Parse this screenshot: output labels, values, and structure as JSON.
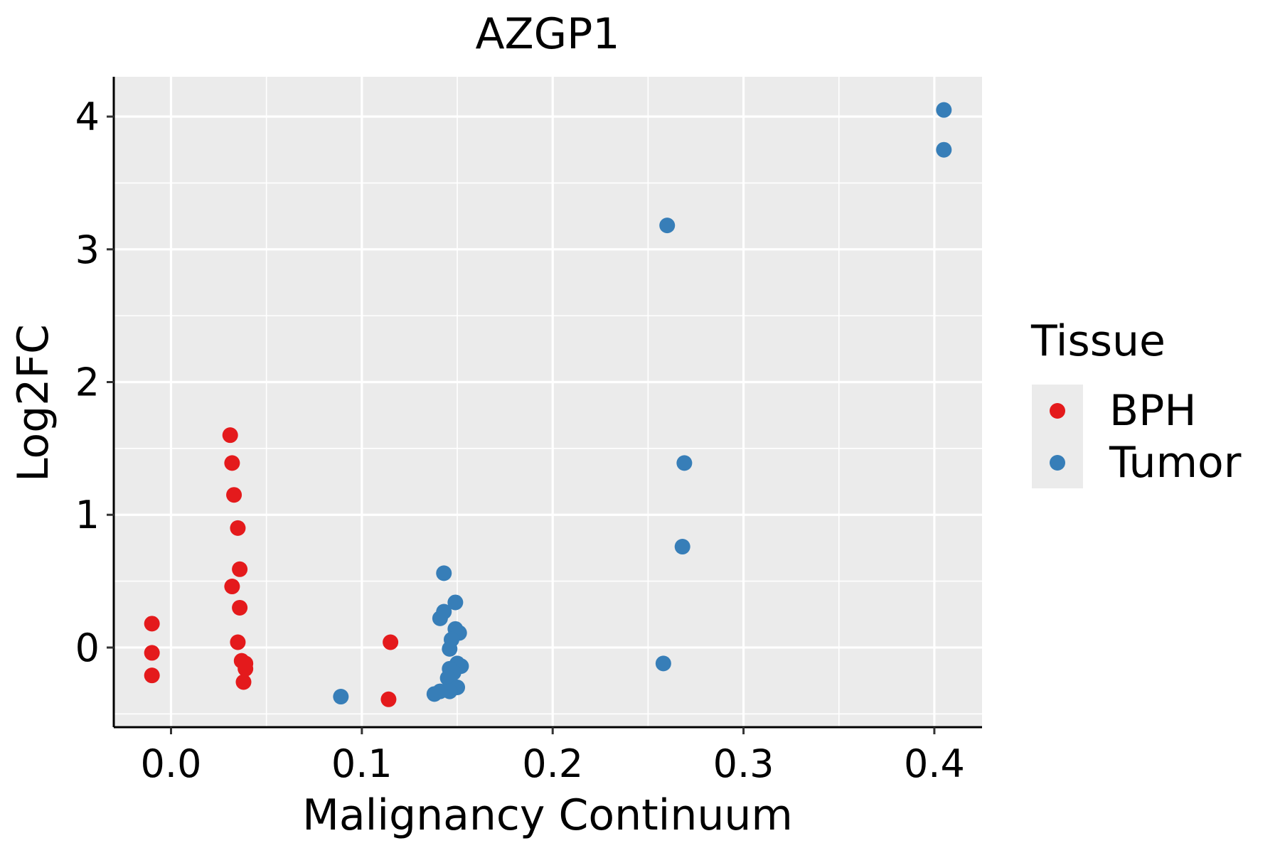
{
  "chart_data": {
    "type": "scatter",
    "title": "AZGP1",
    "xlabel": "Malignancy Continuum",
    "ylabel": "Log2FC",
    "xlim": [
      -0.03,
      0.425
    ],
    "ylim": [
      -0.6,
      4.3
    ],
    "xticks": [
      0.0,
      0.1,
      0.2,
      0.3,
      0.4
    ],
    "xtick_labels": [
      "0.0",
      "0.1",
      "0.2",
      "0.3",
      "0.4"
    ],
    "yticks": [
      0,
      1,
      2,
      3,
      4
    ],
    "ytick_labels": [
      "0",
      "1",
      "2",
      "3",
      "4"
    ],
    "grid": true,
    "legend": {
      "title": "Tissue",
      "position": "right"
    },
    "series": [
      {
        "name": "BPH",
        "color": "#e41a1c",
        "points": [
          [
            -0.01,
            0.18
          ],
          [
            -0.01,
            -0.04
          ],
          [
            -0.01,
            -0.21
          ],
          [
            0.031,
            1.6
          ],
          [
            0.032,
            1.39
          ],
          [
            0.033,
            1.15
          ],
          [
            0.035,
            0.9
          ],
          [
            0.036,
            0.59
          ],
          [
            0.032,
            0.46
          ],
          [
            0.036,
            0.3
          ],
          [
            0.035,
            0.04
          ],
          [
            0.037,
            -0.1
          ],
          [
            0.039,
            -0.12
          ],
          [
            0.039,
            -0.16
          ],
          [
            0.038,
            -0.26
          ],
          [
            0.115,
            0.04
          ],
          [
            0.114,
            -0.39
          ]
        ]
      },
      {
        "name": "Tumor",
        "color": "#377eb8",
        "points": [
          [
            0.089,
            -0.37
          ],
          [
            0.143,
            0.56
          ],
          [
            0.149,
            0.34
          ],
          [
            0.143,
            0.27
          ],
          [
            0.141,
            0.22
          ],
          [
            0.149,
            0.14
          ],
          [
            0.151,
            0.11
          ],
          [
            0.147,
            0.06
          ],
          [
            0.146,
            -0.01
          ],
          [
            0.15,
            -0.12
          ],
          [
            0.152,
            -0.14
          ],
          [
            0.146,
            -0.16
          ],
          [
            0.148,
            -0.19
          ],
          [
            0.145,
            -0.23
          ],
          [
            0.15,
            -0.3
          ],
          [
            0.146,
            -0.33
          ],
          [
            0.141,
            -0.33
          ],
          [
            0.138,
            -0.35
          ],
          [
            0.26,
            3.18
          ],
          [
            0.269,
            1.39
          ],
          [
            0.268,
            0.76
          ],
          [
            0.258,
            -0.12
          ],
          [
            0.405,
            4.05
          ],
          [
            0.405,
            3.75
          ]
        ]
      }
    ]
  }
}
